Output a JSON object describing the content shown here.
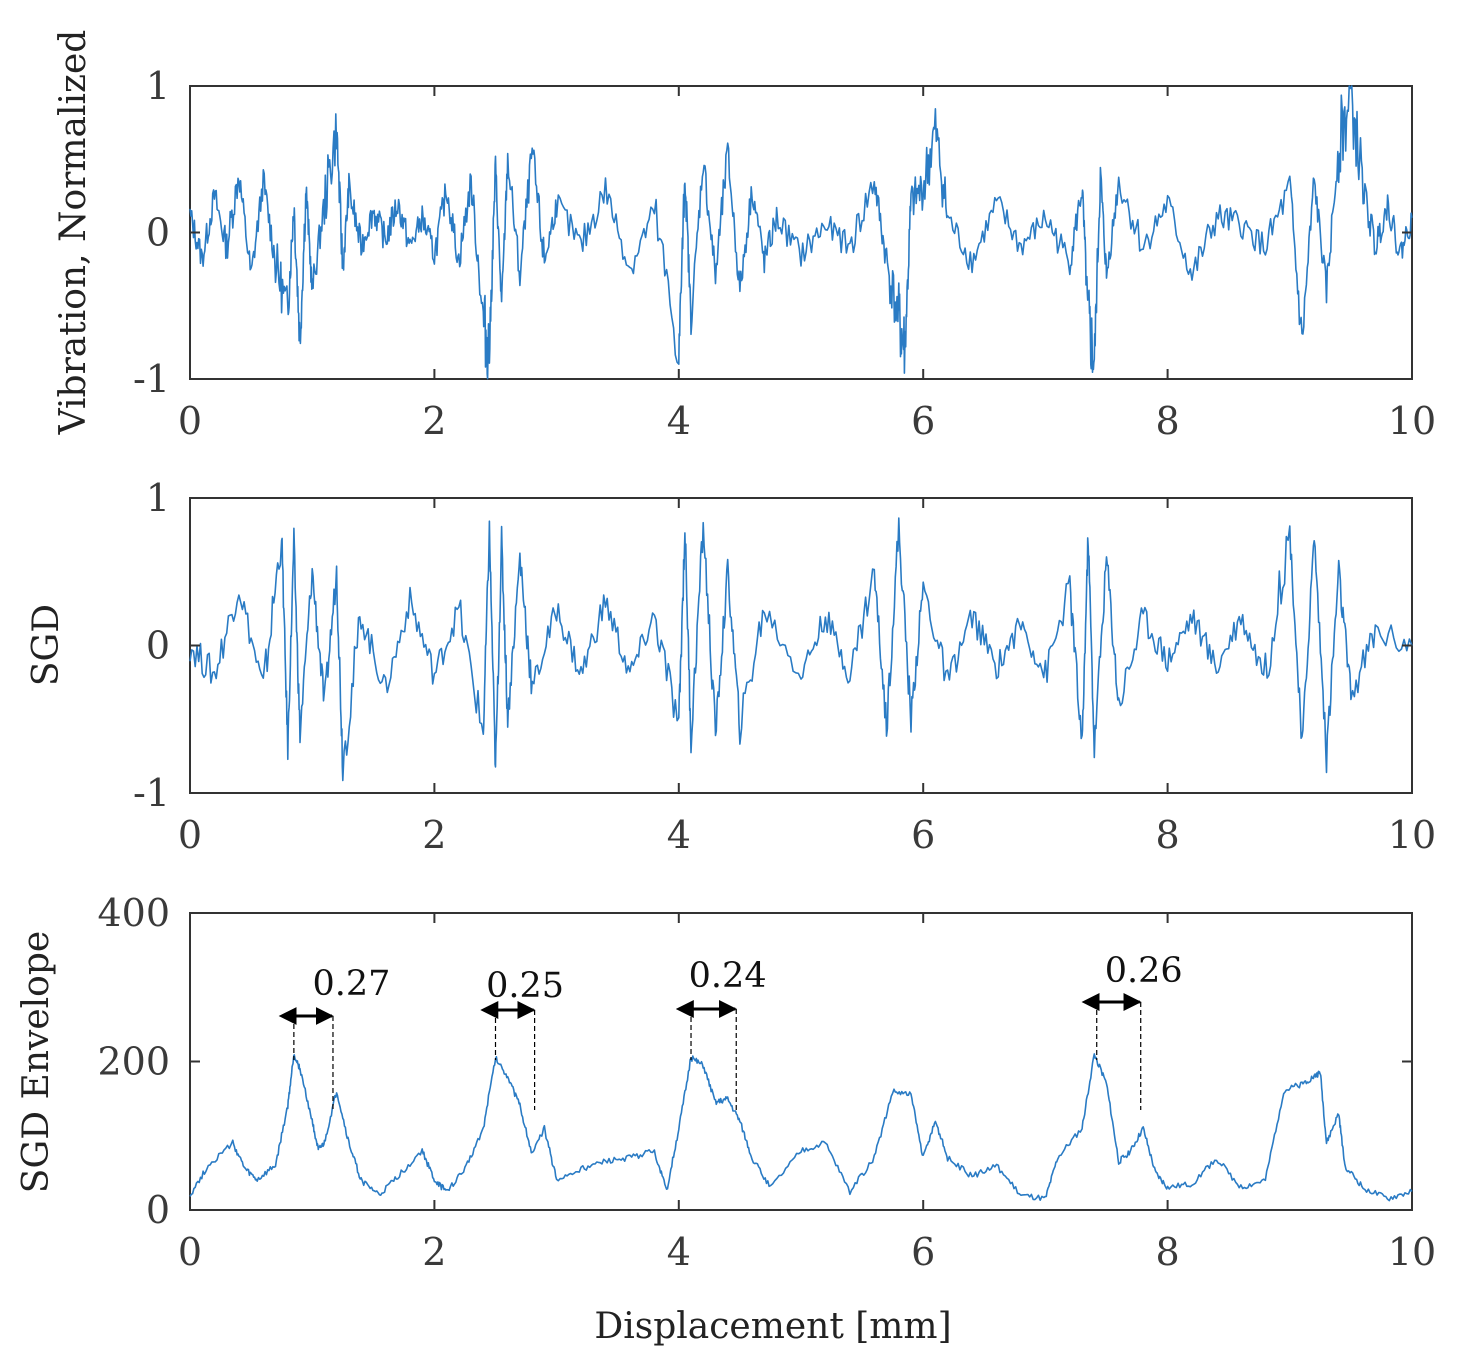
{
  "figure": {
    "colors": {
      "series": "#2a7bc4",
      "axis": "#333333",
      "annotation": "#000000"
    }
  },
  "chart_data": [
    {
      "type": "line",
      "id": "vibration",
      "ylabel": "Vibration, Normalized",
      "xlabel": "",
      "xlim": [
        0,
        10
      ],
      "ylim": [
        -1,
        1
      ],
      "xticks": [
        "0",
        "2",
        "4",
        "6",
        "8",
        "10"
      ],
      "yticks": [
        "-1",
        "0",
        "1"
      ],
      "grid": false,
      "series": [
        {
          "name": "Vibration",
          "x": [
            0.0,
            0.1,
            0.2,
            0.3,
            0.4,
            0.5,
            0.6,
            0.7,
            0.8,
            0.85,
            0.9,
            0.95,
            1.0,
            1.1,
            1.2,
            1.25,
            1.3,
            1.4,
            1.5,
            1.6,
            1.7,
            1.8,
            1.9,
            2.0,
            2.1,
            2.2,
            2.3,
            2.4,
            2.45,
            2.5,
            2.55,
            2.6,
            2.7,
            2.8,
            2.9,
            3.0,
            3.2,
            3.4,
            3.6,
            3.8,
            4.0,
            4.05,
            4.1,
            4.2,
            4.3,
            4.4,
            4.5,
            4.6,
            4.7,
            4.8,
            5.0,
            5.2,
            5.4,
            5.6,
            5.7,
            5.8,
            5.85,
            5.9,
            6.0,
            6.1,
            6.2,
            6.4,
            6.6,
            6.8,
            7.0,
            7.2,
            7.3,
            7.35,
            7.4,
            7.45,
            7.5,
            7.6,
            7.8,
            8.0,
            8.2,
            8.4,
            8.6,
            8.8,
            9.0,
            9.1,
            9.2,
            9.3,
            9.4,
            9.5,
            9.6,
            9.7,
            9.8,
            9.9,
            10.0
          ],
          "y": [
            0.12,
            -0.18,
            0.25,
            -0.1,
            0.4,
            -0.3,
            0.35,
            -0.2,
            -0.55,
            0.2,
            -0.75,
            0.3,
            -0.4,
            0.2,
            0.7,
            -0.25,
            0.3,
            -0.1,
            0.15,
            -0.05,
            0.2,
            -0.1,
            0.1,
            -0.15,
            0.3,
            -0.2,
            0.35,
            -0.6,
            -0.82,
            0.45,
            -0.5,
            0.5,
            -0.3,
            0.55,
            -0.2,
            0.2,
            -0.1,
            0.3,
            -0.25,
            0.15,
            -0.85,
            0.4,
            -0.6,
            0.5,
            -0.3,
            0.55,
            -0.4,
            0.3,
            -0.2,
            0.1,
            -0.15,
            0.05,
            -0.1,
            0.35,
            -0.2,
            -0.6,
            -0.8,
            0.2,
            0.3,
            0.7,
            0.1,
            -0.2,
            0.2,
            -0.1,
            0.1,
            -0.2,
            0.3,
            -0.6,
            -0.9,
            0.4,
            -0.3,
            0.35,
            -0.1,
            0.2,
            -0.3,
            0.1,
            0.05,
            -0.1,
            0.3,
            -0.75,
            0.35,
            -0.4,
            0.6,
            0.92,
            0.3,
            -0.1,
            0.2,
            -0.15,
            0.1
          ]
        }
      ]
    },
    {
      "type": "line",
      "id": "sgd",
      "ylabel": "SGD",
      "xlabel": "",
      "xlim": [
        0,
        10
      ],
      "ylim": [
        -1,
        1
      ],
      "xticks": [
        "0",
        "2",
        "4",
        "6",
        "8",
        "10"
      ],
      "yticks": [
        "-1",
        "0",
        "1"
      ],
      "grid": false,
      "series": [
        {
          "name": "SGD",
          "x": [
            0.0,
            0.2,
            0.4,
            0.6,
            0.75,
            0.8,
            0.85,
            0.9,
            1.0,
            1.1,
            1.2,
            1.25,
            1.4,
            1.6,
            1.8,
            2.0,
            2.2,
            2.4,
            2.45,
            2.5,
            2.55,
            2.6,
            2.7,
            2.8,
            3.0,
            3.2,
            3.4,
            3.6,
            3.8,
            4.0,
            4.05,
            4.1,
            4.2,
            4.3,
            4.4,
            4.5,
            4.7,
            5.0,
            5.2,
            5.4,
            5.6,
            5.7,
            5.8,
            5.9,
            6.0,
            6.2,
            6.4,
            6.6,
            6.8,
            7.0,
            7.2,
            7.3,
            7.35,
            7.4,
            7.5,
            7.6,
            7.8,
            8.0,
            8.2,
            8.4,
            8.6,
            8.8,
            9.0,
            9.1,
            9.2,
            9.3,
            9.4,
            9.5,
            9.7,
            10.0
          ],
          "y": [
            0.0,
            -0.2,
            0.4,
            -0.3,
            0.75,
            -0.7,
            0.7,
            -0.6,
            0.5,
            -0.4,
            0.5,
            -0.8,
            0.2,
            -0.3,
            0.3,
            -0.2,
            0.25,
            -0.6,
            0.78,
            -0.85,
            0.7,
            -0.5,
            0.6,
            -0.3,
            0.25,
            -0.2,
            0.3,
            -0.2,
            0.2,
            -0.55,
            0.8,
            -0.65,
            0.82,
            -0.6,
            0.5,
            -0.55,
            0.25,
            -0.2,
            0.2,
            -0.2,
            0.5,
            -0.55,
            0.8,
            -0.5,
            0.4,
            -0.25,
            0.2,
            -0.15,
            0.15,
            -0.2,
            0.4,
            -0.7,
            0.75,
            -0.7,
            0.6,
            -0.4,
            0.2,
            -0.1,
            0.2,
            -0.15,
            0.2,
            -0.2,
            0.78,
            -0.7,
            0.75,
            -0.75,
            0.5,
            -0.35,
            0.1,
            0.0
          ]
        }
      ]
    },
    {
      "type": "line",
      "id": "sgd-envelope",
      "ylabel": "SGD Envelope",
      "xlabel": "Displacement [mm]",
      "xlim": [
        0,
        10
      ],
      "ylim": [
        0,
        400
      ],
      "xticks": [
        "0",
        "2",
        "4",
        "6",
        "8",
        "10"
      ],
      "yticks": [
        "0",
        "200",
        "400"
      ],
      "grid": false,
      "series": [
        {
          "name": "SGD Envelope",
          "x": [
            0.0,
            0.15,
            0.35,
            0.45,
            0.55,
            0.7,
            0.8,
            0.85,
            0.9,
            1.0,
            1.05,
            1.1,
            1.2,
            1.3,
            1.4,
            1.55,
            1.7,
            1.9,
            2.0,
            2.1,
            2.25,
            2.4,
            2.5,
            2.6,
            2.7,
            2.8,
            2.9,
            3.0,
            3.2,
            3.4,
            3.6,
            3.8,
            3.9,
            4.0,
            4.1,
            4.2,
            4.3,
            4.4,
            4.5,
            4.6,
            4.75,
            5.0,
            5.2,
            5.4,
            5.6,
            5.75,
            5.9,
            6.0,
            6.1,
            6.2,
            6.4,
            6.6,
            6.8,
            7.0,
            7.1,
            7.3,
            7.4,
            7.5,
            7.6,
            7.7,
            7.8,
            7.9,
            8.0,
            8.2,
            8.4,
            8.6,
            8.8,
            8.95,
            9.1,
            9.2,
            9.25,
            9.3,
            9.4,
            9.45,
            9.6,
            9.8,
            10.0
          ],
          "y": [
            20,
            60,
            90,
            55,
            40,
            60,
            140,
            210,
            190,
            120,
            80,
            90,
            160,
            90,
            40,
            20,
            45,
            80,
            40,
            25,
            55,
            110,
            205,
            180,
            140,
            75,
            110,
            40,
            55,
            65,
            70,
            80,
            25,
            110,
            205,
            195,
            145,
            150,
            120,
            70,
            30,
            80,
            90,
            25,
            70,
            160,
            155,
            70,
            120,
            70,
            45,
            60,
            20,
            15,
            70,
            110,
            210,
            170,
            65,
            80,
            110,
            50,
            30,
            35,
            70,
            30,
            40,
            160,
            170,
            180,
            185,
            90,
            130,
            60,
            30,
            15,
            25
          ]
        }
      ],
      "annotations": [
        {
          "label": "0.27",
          "x_start": 0.85,
          "x_end": 1.17
        },
        {
          "label": "0.25",
          "x_start": 2.5,
          "x_end": 2.82
        },
        {
          "label": "0.24",
          "x_start": 4.1,
          "x_end": 4.47
        },
        {
          "label": "0.26",
          "x_start": 7.42,
          "x_end": 7.78
        }
      ]
    }
  ]
}
